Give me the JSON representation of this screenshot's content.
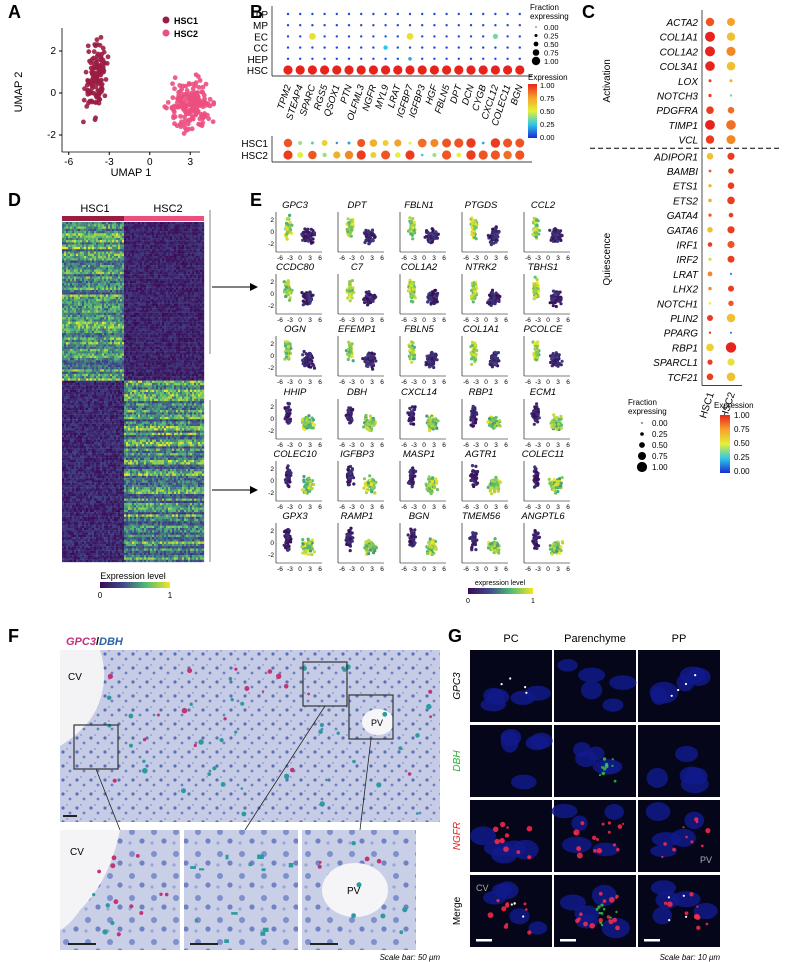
{
  "panels": {
    "A": "A",
    "B": "B",
    "C": "C",
    "D": "D",
    "E": "E",
    "F": "F",
    "G": "G"
  },
  "umap": {
    "xlabel": "UMAP 1",
    "ylabel": "UMAP 2",
    "xticks": [
      "-6",
      "-3",
      "0",
      "3"
    ],
    "yticks": [
      "2",
      "0",
      "-2"
    ],
    "legend": [
      {
        "label": "HSC1",
        "color": "#9b1d42"
      },
      {
        "label": "HSC2",
        "color": "#ec4f7f"
      }
    ]
  },
  "dotB": {
    "rows": [
      "LP",
      "MP",
      "EC",
      "CC",
      "HEP",
      "HSC"
    ],
    "genes": [
      "TPM2",
      "STEAP4",
      "SPARC",
      "RGS5",
      "QSOX1",
      "PTN",
      "OLFML3",
      "NGFR",
      "MYL9",
      "LRAT",
      "IGFBP7",
      "IGFBP3",
      "HGF",
      "FBLN5",
      "DPT",
      "DCN",
      "CYGB",
      "CXCL12",
      "COLEC11",
      "BGN"
    ],
    "bottom_rows": [
      "HSC1",
      "HSC2"
    ],
    "fraction_title": "Fraction\nexpressing",
    "fraction_ticks": [
      "0.00",
      "0.25",
      "0.50",
      "0.75",
      "1.00"
    ],
    "expression_title": "Expression",
    "expression_ticks": [
      "1.00",
      "0.75",
      "0.50",
      "0.25",
      "0.00"
    ]
  },
  "dotC": {
    "genes_activation": [
      "ACTA2",
      "COL1A1",
      "COL1A2",
      "COL3A1",
      "LOX",
      "NOTCH3",
      "PDGFRA",
      "TIMP1",
      "VCL"
    ],
    "genes_quiescence": [
      "ADIPOR1",
      "BAMBI",
      "ETS1",
      "ETS2",
      "GATA4",
      "GATA6",
      "IRF1",
      "IRF2",
      "LRAT",
      "LHX2",
      "NOTCH1",
      "PLIN2",
      "PPARG",
      "RBP1",
      "SPARCL1",
      "TCF21"
    ],
    "group_activation": "Activation",
    "group_quiescence": "Quiescence",
    "columns": [
      "HSC1",
      "HSC2"
    ],
    "fraction_title": "Fraction\nexpressing",
    "fraction_ticks": [
      "0.00",
      "0.25",
      "0.50",
      "0.75",
      "1.00"
    ],
    "expression_title": "Expression",
    "expression_ticks": [
      "1.00",
      "0.75",
      "0.50",
      "0.25",
      "0.00"
    ]
  },
  "heatmap": {
    "groups": [
      "HSC1",
      "HSC2"
    ],
    "legend_title": "Expression level",
    "legend_ticks": [
      "0",
      "1"
    ]
  },
  "featureE": {
    "top_genes": [
      "GPC3",
      "DPT",
      "FBLN1",
      "PTGDS",
      "CCL2",
      "CCDC80",
      "C7",
      "COL1A2",
      "NTRK2",
      "TBHS1",
      "OGN",
      "EFEMP1",
      "FBLN5",
      "COL1A1",
      "PCOLCE"
    ],
    "bottom_genes": [
      "HHIP",
      "DBH",
      "CXCL14",
      "RBP1",
      "ECM1",
      "COLEC10",
      "IGFBP3",
      "MASP1",
      "AGTR1",
      "COLEC11",
      "GPX3",
      "RAMP1",
      "BGN",
      "TMEM56",
      "ANGPTL6"
    ],
    "xticks": [
      "-6",
      "-3",
      "0",
      "3",
      "6"
    ],
    "yticks": [
      "2",
      "0",
      "-2"
    ],
    "legend_title": "expression level",
    "legend_ticks": [
      "0",
      "1"
    ]
  },
  "histoF": {
    "title_a": "GPC3",
    "title_sep": "/",
    "title_b": "DBH",
    "labels": [
      "CV",
      "PV",
      "CV",
      "PV"
    ],
    "scale_note": "Scale bar: 50 μm"
  },
  "fishG": {
    "columns": [
      "PC",
      "Parenchyme",
      "PP"
    ],
    "rows": [
      {
        "label": "GPC3",
        "color": "#000000"
      },
      {
        "label": "DBH",
        "color": "#2fae3a"
      },
      {
        "label": "NGFR",
        "color": "#e02020"
      },
      {
        "label": "Merge",
        "color": "#000000"
      }
    ],
    "inset_labels": [
      "PV",
      "CV"
    ],
    "scale_note": "Scale bar: 10 μm"
  }
}
